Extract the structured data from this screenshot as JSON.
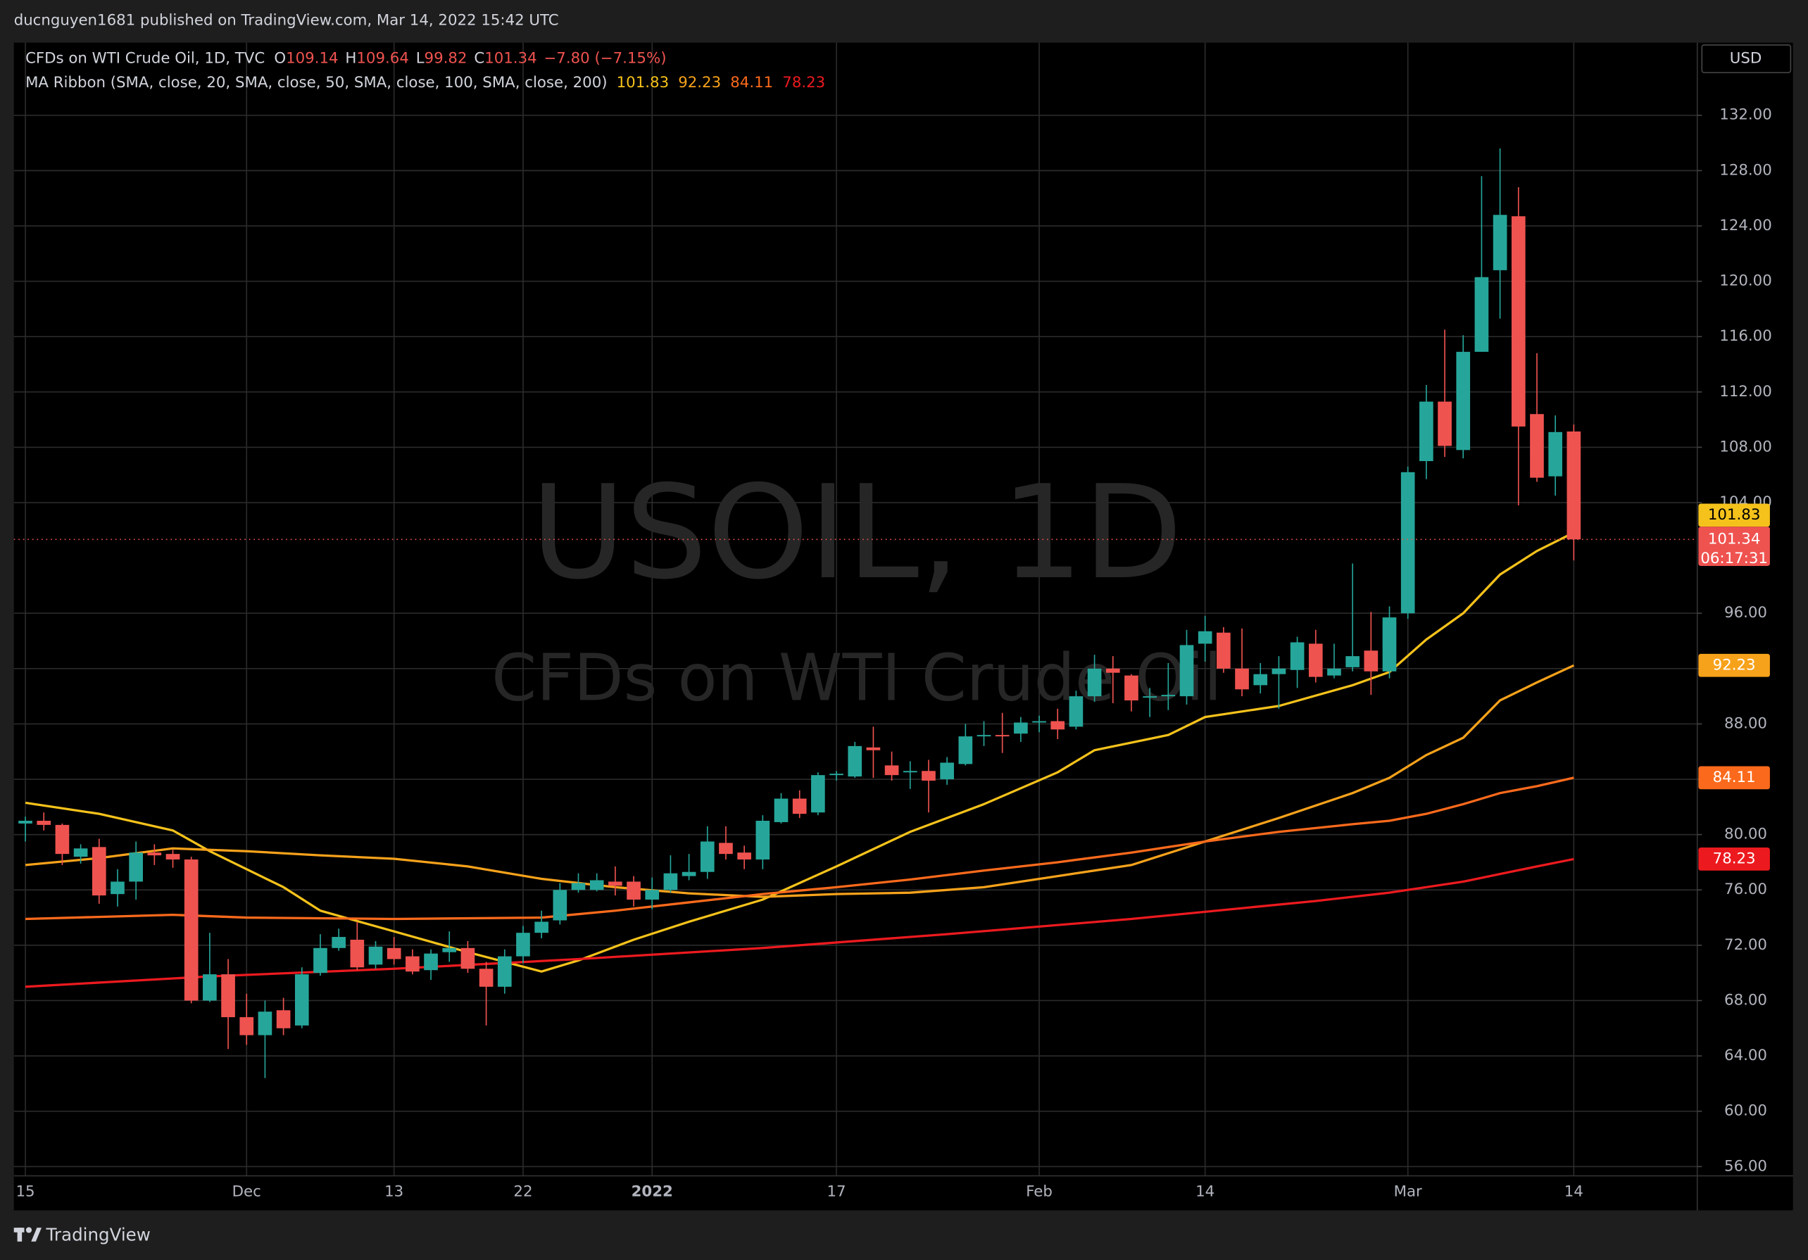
{
  "header": {
    "publisher": "ducnguyen1681 published on TradingView.com, Mar 14, 2022 15:42 UTC",
    "symbol": "CFDs on WTI Crude Oil, 1D, TVC",
    "ohlc_letters": [
      "O",
      "H",
      "L",
      "C"
    ],
    "change": "−7.80 (−7.15%)",
    "indicator": "MA Ribbon (SMA, close, 20, SMA, close, 50, SMA, close, 100, SMA, close, 200)"
  },
  "watermark": {
    "symbol": "USOIL, 1D",
    "description": "CFDs on WTI Crude Oil"
  },
  "footer": {
    "brand": "TradingView"
  },
  "chart_data": {
    "type": "candlestick",
    "currency": "USD",
    "up_color": "#26a69a",
    "down_color": "#ef5350",
    "grid": true,
    "last_price_line": true,
    "countdown": "06:17:31",
    "xlim": [
      -0.625,
      90.7
    ],
    "ylim": [
      55.33,
      137.25
    ],
    "xticks": [
      {
        "value": 0,
        "label": "15"
      },
      {
        "value": 12,
        "label": "Dec"
      },
      {
        "value": 20,
        "label": "13"
      },
      {
        "value": 27,
        "label": "22"
      },
      {
        "value": 34,
        "label": "2022"
      },
      {
        "value": 44,
        "label": "17"
      },
      {
        "value": 55,
        "label": "Feb"
      },
      {
        "value": 64,
        "label": "14"
      },
      {
        "value": 75,
        "label": "Mar"
      },
      {
        "value": 84,
        "label": "14"
      }
    ],
    "yticks": [
      {
        "value": 56,
        "label": "56.00"
      },
      {
        "value": 60,
        "label": "60.00"
      },
      {
        "value": 64,
        "label": "64.00"
      },
      {
        "value": 68,
        "label": "68.00"
      },
      {
        "value": 72,
        "label": "72.00"
      },
      {
        "value": 76,
        "label": "76.00"
      },
      {
        "value": 80,
        "label": "80.00"
      },
      {
        "value": 84,
        "label": "84.00"
      },
      {
        "value": 88,
        "label": "88.00"
      },
      {
        "value": 92,
        "label": "92.00"
      },
      {
        "value": 96,
        "label": "96.00"
      },
      {
        "value": 104,
        "label": "104.00"
      },
      {
        "value": 108,
        "label": "108.00"
      },
      {
        "value": 112,
        "label": "112.00"
      },
      {
        "value": 116,
        "label": "116.00"
      },
      {
        "value": 120,
        "label": "120.00"
      },
      {
        "value": 124,
        "label": "124.00"
      },
      {
        "value": 128,
        "label": "128.00"
      },
      {
        "value": 132,
        "label": "132.00"
      }
    ],
    "open": [
      80.8,
      81.0,
      80.7,
      78.4,
      79.1,
      75.7,
      76.6,
      78.7,
      78.6,
      78.2,
      68.0,
      69.9,
      66.8,
      65.5,
      67.3,
      66.2,
      70.0,
      71.8,
      72.4,
      70.6,
      71.8,
      71.2,
      70.2,
      71.5,
      71.8,
      70.3,
      69.0,
      71.2,
      72.9,
      73.8,
      76.0,
      76.0,
      76.6,
      76.6,
      75.3,
      76.0,
      77.0,
      77.3,
      79.4,
      78.7,
      78.2,
      80.9,
      82.6,
      81.6,
      84.3,
      84.2,
      86.3,
      85.0,
      84.5,
      84.6,
      84.0,
      85.1,
      87.1,
      87.2,
      87.3,
      88.1,
      88.2,
      87.8,
      90.0,
      92.0,
      91.5,
      89.9,
      90.0,
      90.0,
      93.8,
      94.6,
      92.0,
      90.8,
      91.6,
      91.9,
      93.8,
      91.5,
      92.1,
      93.3,
      91.8,
      96.0,
      107.0,
      111.3,
      107.8,
      114.9,
      120.8,
      124.7,
      110.4,
      105.9,
      109.14
    ],
    "high": [
      81.3,
      81.6,
      80.8,
      79.3,
      79.7,
      77.5,
      79.5,
      79.3,
      78.9,
      78.4,
      72.9,
      71.0,
      68.5,
      68.0,
      68.2,
      70.4,
      72.8,
      73.2,
      73.7,
      72.3,
      72.6,
      71.7,
      71.7,
      73.0,
      72.3,
      70.8,
      71.7,
      73.4,
      74.5,
      76.5,
      77.2,
      77.2,
      77.7,
      77.0,
      76.9,
      78.5,
      78.6,
      80.6,
      80.6,
      79.2,
      81.4,
      83.0,
      83.2,
      84.5,
      84.6,
      86.7,
      87.8,
      86.0,
      85.3,
      85.4,
      85.6,
      88.0,
      88.2,
      88.8,
      88.5,
      88.6,
      89.1,
      90.4,
      93.0,
      92.9,
      91.6,
      90.6,
      92.4,
      94.8,
      95.8,
      95.0,
      94.9,
      92.4,
      92.9,
      94.3,
      94.8,
      93.8,
      99.6,
      96.1,
      96.5,
      106.6,
      112.5,
      116.5,
      116.1,
      127.6,
      129.6,
      126.8,
      114.8,
      110.3,
      109.64
    ],
    "low": [
      79.5,
      80.3,
      77.8,
      77.9,
      75.0,
      74.8,
      75.3,
      77.8,
      77.6,
      67.8,
      67.9,
      64.5,
      64.8,
      62.4,
      65.5,
      66.0,
      69.8,
      71.6,
      70.2,
      70.3,
      70.6,
      69.9,
      69.5,
      70.8,
      70.0,
      66.2,
      68.5,
      70.7,
      72.5,
      73.5,
      75.8,
      75.9,
      75.6,
      74.8,
      74.6,
      75.8,
      76.7,
      76.8,
      78.2,
      77.5,
      77.5,
      80.8,
      81.2,
      81.4,
      83.9,
      84.1,
      84.1,
      83.9,
      83.3,
      81.6,
      83.6,
      85.0,
      86.4,
      85.9,
      86.7,
      87.4,
      86.9,
      87.6,
      89.6,
      89.5,
      88.9,
      88.5,
      89.0,
      89.4,
      92.5,
      91.7,
      90.0,
      90.2,
      89.1,
      90.6,
      91.0,
      91.3,
      91.8,
      90.1,
      91.3,
      95.6,
      105.7,
      107.3,
      107.2,
      114.9,
      117.3,
      103.8,
      105.5,
      104.5,
      99.82
    ],
    "close": [
      81.0,
      80.7,
      78.6,
      79.0,
      75.6,
      76.6,
      78.7,
      78.5,
      78.2,
      68.0,
      69.9,
      66.8,
      65.5,
      67.2,
      66.0,
      69.9,
      71.8,
      72.6,
      70.4,
      71.9,
      71.0,
      70.1,
      71.4,
      71.8,
      70.3,
      69.0,
      71.2,
      72.9,
      73.7,
      76.0,
      76.5,
      76.7,
      76.3,
      75.3,
      76.0,
      77.2,
      77.3,
      79.5,
      78.6,
      78.2,
      81.0,
      82.6,
      81.5,
      84.3,
      84.4,
      86.4,
      86.1,
      84.3,
      84.6,
      83.9,
      85.2,
      87.1,
      87.2,
      87.1,
      88.1,
      88.2,
      87.6,
      90.0,
      92.0,
      91.7,
      89.7,
      90.0,
      90.1,
      93.7,
      94.7,
      92.0,
      90.5,
      91.6,
      92.0,
      93.9,
      91.4,
      92.0,
      92.9,
      91.8,
      95.7,
      106.2,
      111.3,
      108.1,
      114.9,
      120.3,
      124.8,
      109.5,
      105.8,
      109.1,
      101.34
    ],
    "ma_series": [
      {
        "color": "#f5c21b",
        "x": [
          0,
          4,
          8,
          10,
          14,
          16,
          20,
          24,
          28,
          30,
          33,
          36,
          40,
          44,
          48,
          52,
          56,
          58,
          62,
          64,
          68,
          72,
          74,
          76,
          78,
          80,
          82,
          84
        ],
        "values": [
          82.3,
          81.5,
          80.3,
          78.8,
          76.2,
          74.5,
          73.0,
          71.5,
          70.1,
          70.9,
          72.4,
          73.7,
          75.3,
          77.7,
          80.2,
          82.2,
          84.5,
          86.1,
          87.2,
          88.5,
          89.3,
          90.8,
          91.75,
          94.1,
          96.0,
          98.8,
          100.5,
          101.83
        ]
      },
      {
        "color": "#f7a21b",
        "x": [
          0,
          4,
          8,
          12,
          16,
          20,
          24,
          28,
          32,
          36,
          40,
          44,
          48,
          52,
          56,
          60,
          64,
          68,
          72,
          74,
          76,
          78,
          80,
          82,
          84
        ],
        "values": [
          77.8,
          78.3,
          79.0,
          78.8,
          78.5,
          78.25,
          77.7,
          76.8,
          76.2,
          75.75,
          75.5,
          75.7,
          75.8,
          76.2,
          77.0,
          77.8,
          79.5,
          81.2,
          83.0,
          84.1,
          85.75,
          87.0,
          89.7,
          91.0,
          92.23
        ]
      },
      {
        "color": "#fb6a1c",
        "x": [
          0,
          8,
          12,
          20,
          28,
          32,
          36,
          40,
          44,
          48,
          52,
          56,
          60,
          64,
          68,
          72,
          74,
          76,
          78,
          80,
          82,
          84
        ],
        "values": [
          73.9,
          74.2,
          74.0,
          73.9,
          74.0,
          74.5,
          75.1,
          75.7,
          76.2,
          76.75,
          77.4,
          78.0,
          78.7,
          79.5,
          80.2,
          80.75,
          81.0,
          81.5,
          82.2,
          83.0,
          83.5,
          84.11
        ]
      },
      {
        "color": "#ec1a1f",
        "x": [
          0,
          10,
          20,
          30,
          40,
          50,
          60,
          70,
          74,
          78,
          82,
          84
        ],
        "values": [
          69.0,
          69.75,
          70.3,
          71.0,
          71.8,
          72.8,
          73.9,
          75.2,
          75.8,
          76.6,
          77.7,
          78.23
        ]
      }
    ]
  }
}
